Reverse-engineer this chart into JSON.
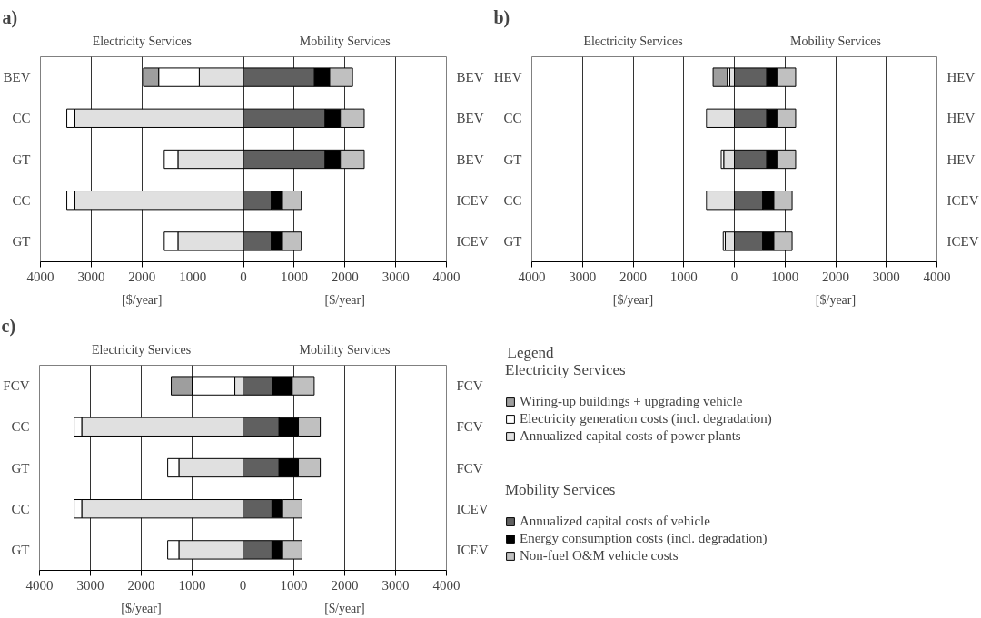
{
  "chart_data": [
    {
      "type": "bar",
      "orientation": "horizontal",
      "stacked": true,
      "title": "a)",
      "annotations": [
        "Electricity Services",
        "Mobility Services"
      ],
      "xlabel": "[$/year]",
      "categories": [
        "BEV",
        "CC",
        "GT",
        "CC",
        "GT"
      ],
      "y2_categories": [
        "BEV",
        "BEV",
        "BEV",
        "ICEV",
        "ICEV"
      ],
      "xlim": [
        -4000,
        4000
      ],
      "xticks": [
        {
          "value": -4000,
          "label": "4000"
        },
        {
          "value": -3000,
          "label": "3000"
        },
        {
          "value": -2000,
          "label": "2000"
        },
        {
          "value": -1000,
          "label": "1000"
        },
        0,
        1000,
        2000,
        3000,
        4000
      ],
      "grid": "x",
      "series": [
        {
          "color": "#e0e0e0",
          "values": [
            -870,
            -3320,
            -1290,
            -3320,
            -1290
          ]
        },
        {
          "color": "#ffffff",
          "values": [
            -800,
            -160,
            -270,
            -160,
            -270
          ]
        },
        {
          "color": "#9e9e9e",
          "values": [
            -300,
            null,
            null,
            null,
            null
          ]
        },
        {
          "color": "#606060",
          "values": [
            1400,
            1610,
            1610,
            550,
            550
          ]
        },
        {
          "color": "#000000",
          "values": [
            300,
            300,
            300,
            220,
            220
          ]
        },
        {
          "color": "#c0c0c0",
          "values": [
            450,
            470,
            470,
            370,
            370
          ]
        }
      ]
    },
    {
      "type": "bar",
      "orientation": "horizontal",
      "stacked": true,
      "title": "b)",
      "annotations": [
        "Electricity Services",
        "Mobility Services"
      ],
      "xlabel": "[$/year]",
      "categories": [
        "HEV",
        "CC",
        "GT",
        "CC",
        "GT"
      ],
      "y2_categories": [
        "HEV",
        "HEV",
        "HEV",
        "ICEV",
        "ICEV"
      ],
      "xlim": [
        -4000,
        4000
      ],
      "xticks": [
        {
          "value": -4000,
          "label": "4000"
        },
        {
          "value": -3000,
          "label": "3000"
        },
        {
          "value": -2000,
          "label": "2000"
        },
        {
          "value": -1000,
          "label": "1000"
        },
        0,
        1000,
        2000,
        3000,
        4000
      ],
      "grid": "x",
      "series": [
        {
          "color": "#e0e0e0",
          "values": [
            -90,
            -520,
            -210,
            -520,
            -180
          ]
        },
        {
          "color": "#ffffff",
          "values": [
            -50,
            -30,
            -50,
            -30,
            -40
          ]
        },
        {
          "color": "#9e9e9e",
          "values": [
            -280,
            null,
            null,
            null,
            null
          ]
        },
        {
          "color": "#606060",
          "values": [
            640,
            640,
            640,
            560,
            560
          ]
        },
        {
          "color": "#000000",
          "values": [
            200,
            200,
            200,
            220,
            220
          ]
        },
        {
          "color": "#c0c0c0",
          "values": [
            370,
            370,
            370,
            360,
            360
          ]
        }
      ]
    },
    {
      "type": "bar",
      "orientation": "horizontal",
      "stacked": true,
      "title": "c)",
      "annotations": [
        "Electricity Services",
        "Mobility Services"
      ],
      "xlabel": "[$/year]",
      "categories": [
        "FCV",
        "CC",
        "GT",
        "CC",
        "GT"
      ],
      "y2_categories": [
        "FCV",
        "FCV",
        "FCV",
        "ICEV",
        "ICEV"
      ],
      "xlim": [
        -4000,
        4000
      ],
      "xticks": [
        {
          "value": -4000,
          "label": "4000"
        },
        {
          "value": -3000,
          "label": "3000"
        },
        {
          "value": -2000,
          "label": "2000"
        },
        {
          "value": -1000,
          "label": "1000"
        },
        0,
        1000,
        2000,
        3000,
        4000
      ],
      "grid": "x",
      "legend": "right",
      "legend_title": "Legend",
      "series": [
        {
          "name": "Annualized capital costs of power plants",
          "color": "#e0e0e0",
          "values": [
            -160,
            -3170,
            -1260,
            -3170,
            -1260
          ]
        },
        {
          "name": "Electricity generation costs (incl. degradation)",
          "color": "#ffffff",
          "values": [
            -840,
            -150,
            -220,
            -150,
            -220
          ]
        },
        {
          "name": "Wiring-up buildings + upgrading vehicle",
          "color": "#9e9e9e",
          "values": [
            -410,
            null,
            null,
            null,
            null
          ]
        },
        {
          "name": "Annualized capital costs of vehicle",
          "color": "#606060",
          "values": [
            590,
            710,
            710,
            570,
            570
          ]
        },
        {
          "name": "Energy consumption costs (incl. degradation)",
          "color": "#000000",
          "values": [
            380,
            380,
            380,
            210,
            210
          ]
        },
        {
          "name": "Non-fuel O&M vehicle costs",
          "color": "#c0c0c0",
          "values": [
            430,
            430,
            430,
            380,
            380
          ]
        }
      ]
    }
  ]
}
